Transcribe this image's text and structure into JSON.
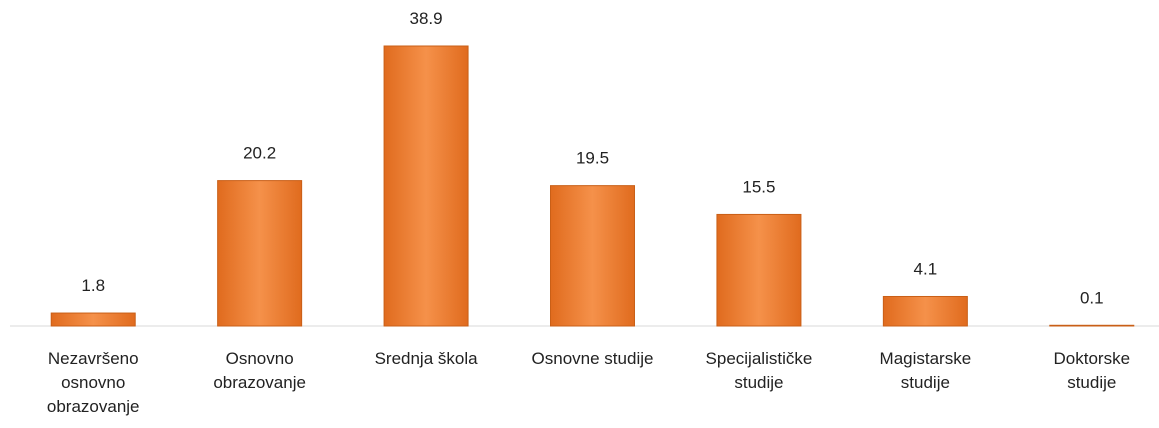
{
  "chart_data": {
    "type": "bar",
    "categories": [
      [
        "Nezavršeno",
        "osnovno",
        "obrazovanje"
      ],
      [
        "Osnovno",
        "obrazovanje"
      ],
      [
        "Srednja škola"
      ],
      [
        "Osnovne studije"
      ],
      [
        "Specijalističke",
        "studije"
      ],
      [
        "Magistarske",
        "studije"
      ],
      [
        "Doktorske",
        "studije"
      ]
    ],
    "values": [
      1.8,
      20.2,
      38.9,
      19.5,
      15.5,
      4.1,
      0.1
    ],
    "color": "#f0873a"
  }
}
